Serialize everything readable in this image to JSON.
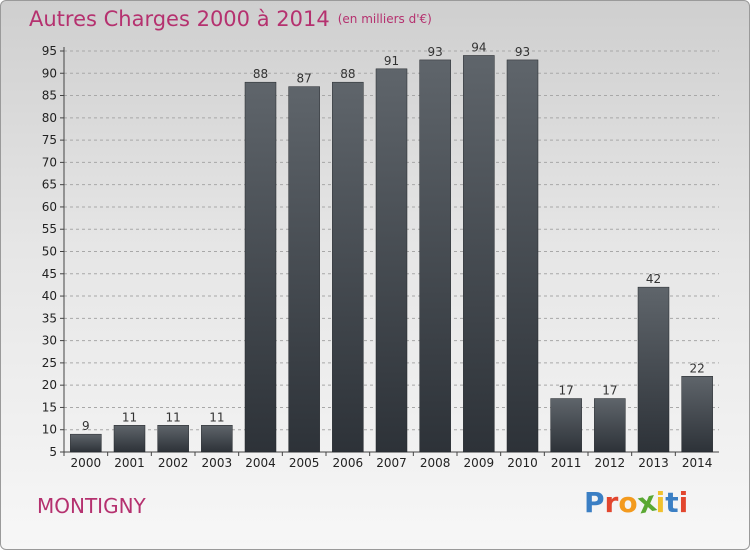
{
  "chart_title": "Autres Charges 2000 à 2014",
  "chart_subtitle": "(en milliers d'€)",
  "location": "MONTIGNY",
  "logo": {
    "text": "Proxiti",
    "letter_colors": [
      "#3b7fc4",
      "#e2462e",
      "#f39a1e",
      "#5aa832",
      "#f1c12d",
      "#3b7fc4",
      "#e2462e"
    ]
  },
  "colors": {
    "title": "#b5316f",
    "bar_top": "#5f656b",
    "bar_bottom": "#2d3238",
    "gridline": "#a8a8a8"
  },
  "chart_data": {
    "type": "bar",
    "title": "Autres Charges 2000 à 2014",
    "subtitle": "(en milliers d'€)",
    "xlabel": "",
    "ylabel": "",
    "categories": [
      "2000",
      "2001",
      "2002",
      "2003",
      "2004",
      "2005",
      "2006",
      "2007",
      "2008",
      "2009",
      "2010",
      "2011",
      "2012",
      "2013",
      "2014"
    ],
    "values": [
      9,
      11,
      11,
      11,
      88,
      87,
      88,
      91,
      93,
      94,
      93,
      17,
      17,
      42,
      22
    ],
    "ylim": [
      5,
      95
    ],
    "yticks": [
      5,
      10,
      15,
      20,
      25,
      30,
      35,
      40,
      45,
      50,
      55,
      60,
      65,
      70,
      75,
      80,
      85,
      90,
      95
    ],
    "grid": "horizontal-dashed",
    "legend": "none"
  }
}
